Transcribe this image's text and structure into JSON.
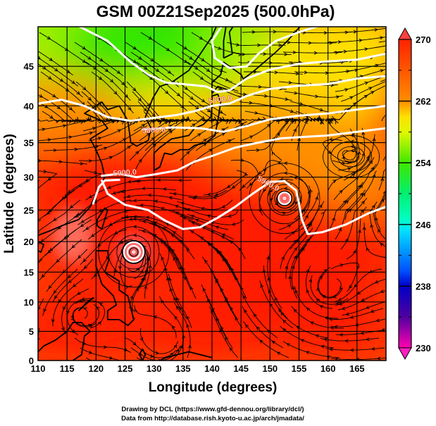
{
  "chart_data": {
    "type": "heatmap",
    "title": "GSM 00Z21Sep2025 (500.0hPa)",
    "xlabel": "Longitude (degrees)",
    "ylabel": "Latitude  (degrees)",
    "xlim": [
      110,
      170
    ],
    "ylim": [
      0,
      50
    ],
    "x_ticks": [
      110,
      115,
      120,
      125,
      130,
      135,
      140,
      145,
      150,
      155,
      160,
      165
    ],
    "y_ticks": [
      0,
      5,
      10,
      15,
      20,
      25,
      30,
      35,
      40,
      45
    ],
    "grid": true,
    "projection": "mercator",
    "shaded_variable": "temperature (K)",
    "colorbar": {
      "min": 230,
      "max": 270,
      "ticks": [
        270,
        262,
        254,
        246,
        238,
        230
      ],
      "extend": "both",
      "placement": "right",
      "colors": [
        "#ff00aa",
        "#5b00a8",
        "#0000c8",
        "#0070ff",
        "#00e8ff",
        "#00ffa0",
        "#10e010",
        "#b8f000",
        "#ffe000",
        "#ff8c00",
        "#ff2200"
      ]
    },
    "contours": {
      "variable": "geopotential height (m)",
      "labels": [
        "5700.0",
        "5800.0",
        "5900.0",
        "5900.0"
      ],
      "levels": [
        5700,
        5800,
        5900
      ],
      "color": "#ffffff"
    },
    "field_regions": [
      {
        "area": "north-west (45-50N, 110-145E)",
        "value": 256
      },
      {
        "area": "north (42-50N, 145-170E)",
        "value": 260
      },
      {
        "area": "mid-latitude (35-42N)",
        "value": 263
      },
      {
        "area": "subtropics (20-35N)",
        "value": 268
      },
      {
        "area": "tropics (0-20N)",
        "value": 267
      }
    ],
    "features": [
      {
        "type": "tropical cyclone",
        "lon": 126.5,
        "lat": 18.3
      },
      {
        "type": "tropical cyclone",
        "lon": 152.5,
        "lat": 26.8
      },
      {
        "type": "cyclonic circulation",
        "lon": 164,
        "lat": 33
      }
    ],
    "overlays": [
      "streamlines",
      "coastlines"
    ],
    "credits": [
      "Drawing by DCL (https://www.gfd-dennou.org/library/dcl/)",
      "Data from http://database.rish.kyoto-u.ac.jp/arch/jmadata/"
    ]
  }
}
